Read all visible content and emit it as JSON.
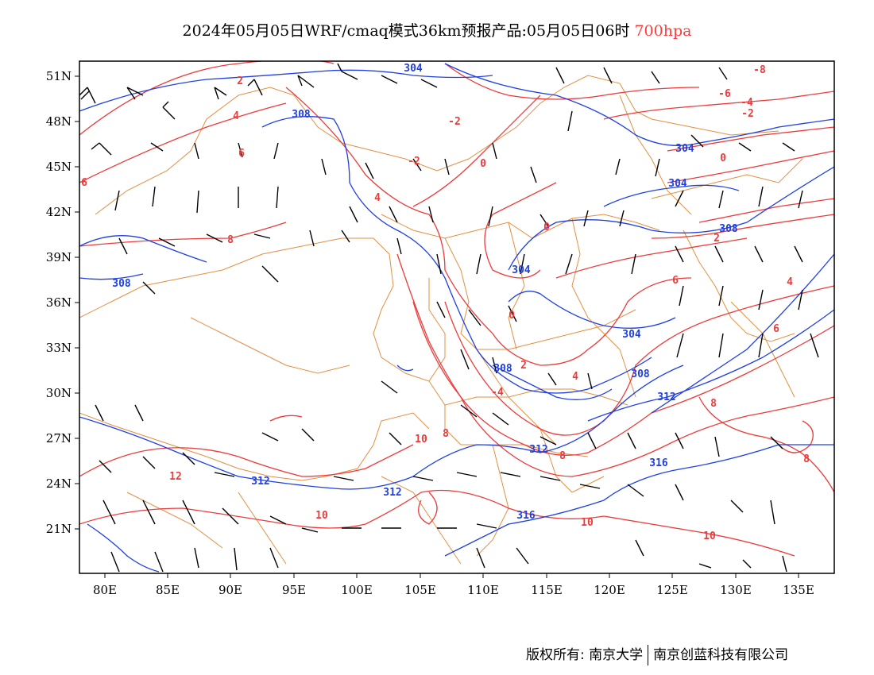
{
  "title": {
    "main": "2024年05月05日WRF/cmaq模式36km预报产品:05月05日06时",
    "level": "700hpa"
  },
  "colors": {
    "temperature": "#ec3b3b",
    "height": "#2040e0",
    "border": "#e09040",
    "wind": "#000000",
    "level_text": "#ff3b3b"
  },
  "axes": {
    "y_ticks": [
      "51N",
      "48N",
      "45N",
      "42N",
      "39N",
      "36N",
      "33N",
      "30N",
      "27N",
      "24N",
      "21N"
    ],
    "x_ticks": [
      "80E",
      "85E",
      "90E",
      "95E",
      "100E",
      "105E",
      "110E",
      "115E",
      "120E",
      "125E",
      "130E",
      "135E"
    ]
  },
  "contour_labels": {
    "height": [
      "304",
      "308",
      "304",
      "304",
      "308",
      "308",
      "304",
      "304",
      "308",
      "308",
      "312",
      "312",
      "312",
      "312",
      "316",
      "316"
    ],
    "temperature": [
      "-8",
      "-6",
      "-4",
      "-2",
      "-2",
      "-2",
      "0",
      "0",
      "0",
      "0",
      "2",
      "2",
      "2",
      "4",
      "4",
      "4",
      "4",
      "6",
      "6",
      "6",
      "6",
      "8",
      "8",
      "8",
      "8",
      "8",
      "-4",
      "10",
      "10",
      "10",
      "10",
      "12"
    ]
  },
  "copyright": {
    "owner": "版权所有: 南京大学",
    "company": "南京创蓝科技有限公司"
  }
}
